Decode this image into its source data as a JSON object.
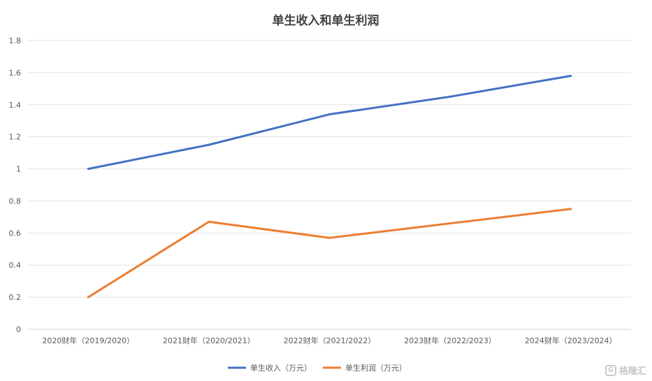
{
  "chart_data": {
    "type": "line",
    "title": "单生收入和单生利润",
    "categories": [
      "2020财年（2019/2020）",
      "2021财年（2020/2021）",
      "2022财年（2021/2022）",
      "2023财年（2022/2023）",
      "2024财年（2023/2024）"
    ],
    "series": [
      {
        "name": "单生收入（万元）",
        "color": "#4472c4",
        "values": [
          1.0,
          1.15,
          1.34,
          1.45,
          1.58
        ]
      },
      {
        "name": "单生利润（万元）",
        "color": "#ed7d31",
        "values": [
          0.2,
          0.67,
          0.57,
          0.66,
          0.75
        ]
      }
    ],
    "ylim": [
      0,
      1.8
    ],
    "yticks": [
      0,
      0.2,
      0.4,
      0.6,
      0.8,
      1,
      1.2,
      1.4,
      1.6,
      1.8
    ],
    "ytick_labels": [
      "0",
      "0.2",
      "0.4",
      "0.6",
      "0.8",
      "1",
      "1.2",
      "1.4",
      "1.6",
      "1.8"
    ],
    "xlabel": "",
    "ylabel": "",
    "grid": true,
    "legend_position": "bottom-center"
  },
  "watermark": {
    "text": "格隆汇",
    "icon": "glh-logo-icon"
  }
}
